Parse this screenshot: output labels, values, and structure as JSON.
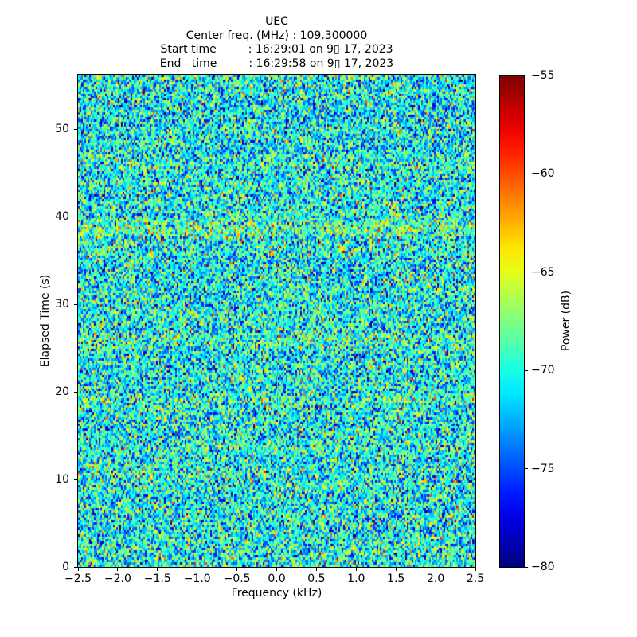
{
  "chart_data": {
    "type": "heatmap",
    "title": "UEC",
    "header_text": "UEC\nCenter freq. (MHz) : 109.300000\nStart time         : 16:29:01 on 9▯ 17, 2023\nEnd   time         : 16:29:58 on 9▯ 17, 2023",
    "header_lines": {
      "center_freq_line": "Center freq. (MHz) : 109.300000",
      "start_time_line": "Start time         : 16:29:01 on 9▯ 17, 2023",
      "end_time_line": "End   time         : 16:29:58 on 9▯ 17, 2023"
    },
    "xlabel": "Frequency (kHz)",
    "ylabel": "Elapsed Time (s)",
    "xlim": [
      -2.5,
      2.5
    ],
    "ylim": [
      0,
      56.2
    ],
    "xticks": {
      "values": [
        -2.5,
        -2.0,
        -1.5,
        -1.0,
        -0.5,
        0.0,
        0.5,
        1.0,
        1.5,
        2.0,
        2.5
      ],
      "labels": [
        "−2.5",
        "−2.0",
        "−1.5",
        "−1.0",
        "−0.5",
        "0.0",
        "0.5",
        "1.0",
        "1.5",
        "2.0",
        "2.5"
      ]
    },
    "yticks": {
      "values": [
        0,
        10,
        20,
        30,
        40,
        50
      ],
      "labels": [
        "0",
        "10",
        "20",
        "30",
        "40",
        "50"
      ]
    },
    "grid": false,
    "legend": "none",
    "colormap": "jet",
    "colorbar": {
      "label": "Power (dB)",
      "vmin": -80,
      "vmax": -55,
      "tick_values": [
        -55,
        -60,
        -65,
        -70,
        -75,
        -80
      ],
      "tick_labels": [
        "−55",
        "−60",
        "−65",
        "−70",
        "−75",
        "−80"
      ],
      "position": "right"
    },
    "noise": {
      "description": "broadband noise-floor spectrogram; random mosaic of blue/cyan/green/yellow cells with rare orange-red speckles and faint brighter horizontal bands",
      "mean_db": -70.4,
      "std_db": 3.9,
      "spike_probability": 0.004,
      "spike_boost_db": [
        5,
        13
      ],
      "seed": 91723,
      "grid_cols": 250,
      "grid_rows": 210,
      "bright_rows": [
        {
          "t": 38.4,
          "boost_db": 2.4,
          "half_width_s": 0.7
        },
        {
          "t": 25.6,
          "boost_db": 1.2,
          "half_width_s": 0.6
        },
        {
          "t": 19.2,
          "boost_db": 1.2,
          "half_width_s": 0.6
        },
        {
          "t": 46.0,
          "boost_db": 1.0,
          "half_width_s": 0.5
        }
      ]
    }
  }
}
